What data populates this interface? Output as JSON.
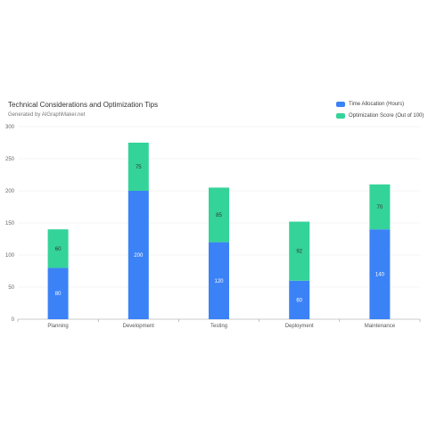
{
  "chart_data": {
    "type": "bar",
    "stacked": true,
    "title": "Technical Considerations and Optimization Tips",
    "subtitle": "Generated by AIGraphMaker.net",
    "categories": [
      "Planning",
      "Development",
      "Testing",
      "Deployment",
      "Maintenance"
    ],
    "series": [
      {
        "name": "Time Allocation (Hours)",
        "values": [
          80,
          200,
          120,
          60,
          140
        ],
        "color": "#3b82f6",
        "label_color": "#ffffff"
      },
      {
        "name": "Optimization Score (Out of 100)",
        "values": [
          60,
          75,
          85,
          92,
          70
        ],
        "color": "#34d399",
        "label_color": "#333333"
      }
    ],
    "ylim": [
      0,
      300
    ],
    "yticks": [
      0,
      50,
      100,
      150,
      200,
      250,
      300
    ],
    "grid": true,
    "legend": "top-right"
  }
}
